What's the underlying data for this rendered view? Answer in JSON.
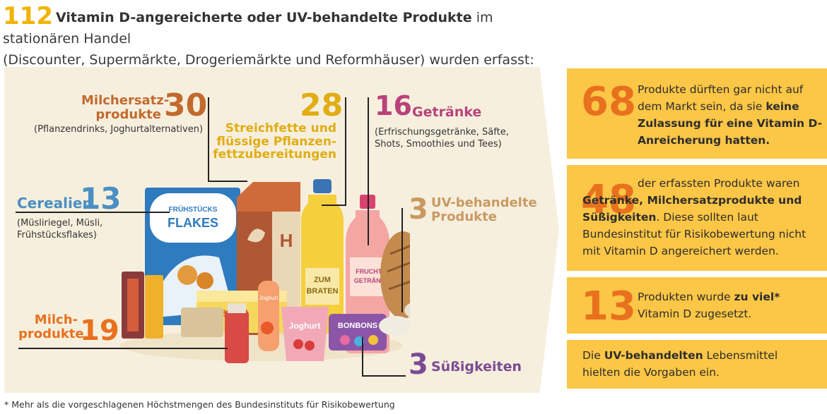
{
  "header": {
    "count": "112",
    "bold_text": "Vitamin D-angereicherte oder UV-behandelte Produkte",
    "rest_line1": " im stationären Handel",
    "line2": "(Discounter, Supermärkte, Drogeriemärkte und Reformhäuser) wurden erfasst:"
  },
  "categories": {
    "milchersatz": {
      "label1": "Milchersatz-",
      "label2": "produkte",
      "value": "30",
      "note": "(Pflanzendrinks, Joghurtalternativen)",
      "color": "#c26a2e"
    },
    "streichfette": {
      "value": "28",
      "label1": "Streichfette und",
      "label2": "flüssige Pflanzen-",
      "label3": "fettzubereitungen",
      "color": "#e0ad12"
    },
    "getraenke": {
      "value": "16",
      "label": "Getränke",
      "note1": "(Erfrischungsgetränke, Säfte,",
      "note2": "Shots, Smoothies und Tees)",
      "color": "#b8427a"
    },
    "cerealien": {
      "label": "Cerealien",
      "value": "13",
      "note1": "(Müsliriegel, Müsli,",
      "note2": "Frühstücksflakes)",
      "color": "#4a8fc4"
    },
    "uv": {
      "value": "3",
      "label1": "UV-behandelte",
      "label2": "Produkte",
      "color": "#c89a62"
    },
    "milchprodukte": {
      "label1": "Milch-",
      "label2": "produkte",
      "value": "19",
      "color": "#e8711e"
    },
    "suess": {
      "value": "3",
      "label": "Süßigkeiten",
      "color": "#7a4b94"
    }
  },
  "product_texts": {
    "flakes_top": "FRÜHSTÜCKS",
    "flakes_main": "FLAKES",
    "oil1": "ZUM",
    "oil2": "BRATEN",
    "drink1": "FRUCHT-",
    "drink2": "GETRÄNK",
    "milk_letter": "H",
    "butter": "BUTT",
    "yogurt1": "Joghurt",
    "yogurt2": "Joghurt",
    "bonbons": "BONBONS"
  },
  "boxes": [
    {
      "number": "68",
      "text_plain1": "Produkte dürften gar nicht auf dem Markt sein, da sie ",
      "text_bold": "keine Zulassung für eine Vitamin D-Anreicherung hatten."
    },
    {
      "number": "48",
      "text_plain1": "der erfassten Produkte waren ",
      "text_bold": "Getränke, Milchersatzprodukte und Süßigkeiten",
      "text_plain2": ". Diese sollten laut Bundesinstitut für Risikobewertung nicht mit Vitamin D angereichert werden."
    },
    {
      "number": "13",
      "text_plain1": "Produkten wurde ",
      "text_bold": "zu viel*",
      "text_plain2": " Vitamin D zugesetzt."
    },
    {
      "text_plain1": "Die ",
      "text_bold": "UV-behandelten",
      "text_plain2": " Lebensmittel hielten die Vorgaben ein."
    }
  ],
  "footnote": "* Mehr als die vorgeschlagenen Höchstmengen des Bundesinstituts für Risikobewertung",
  "colors": {
    "accent_yellow": "#fcc646",
    "accent_orange": "#e8711e",
    "panel_bg": "#f7efde"
  }
}
